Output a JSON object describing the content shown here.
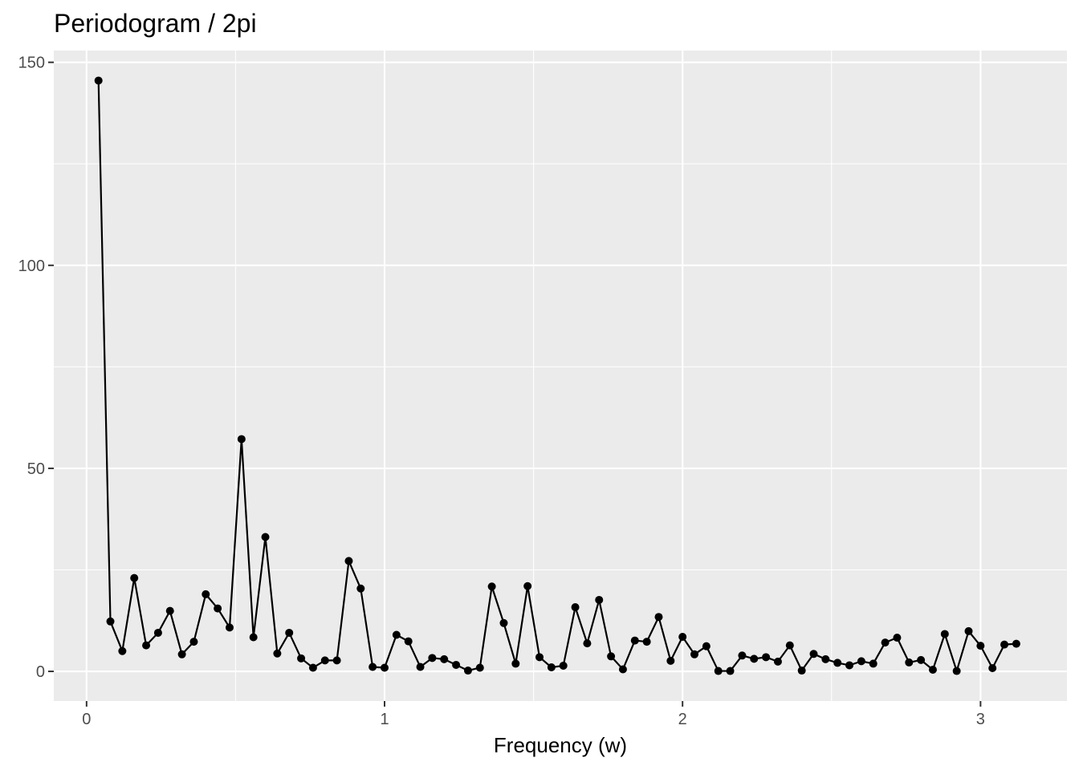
{
  "chart_data": {
    "type": "line",
    "title": "Periodogram / 2pi",
    "xlabel": "Frequency (w)",
    "ylabel": "",
    "xlim": [
      -0.11,
      3.29
    ],
    "ylim": [
      -7.3,
      152.9
    ],
    "x_ticks": [
      0,
      1,
      2,
      3
    ],
    "x_tick_labels": [
      "0",
      "1",
      "2",
      "3"
    ],
    "y_ticks": [
      0,
      50,
      100,
      150
    ],
    "y_tick_labels": [
      "0",
      "50",
      "100",
      "150"
    ],
    "grid": true,
    "legend": "none",
    "colors": {
      "panel": "#ebebeb",
      "grid": "#ffffff",
      "series": "#000000",
      "tick_text": "#4d4d4d"
    },
    "series": [
      {
        "x": [
          0.04,
          0.08,
          0.12,
          0.16,
          0.2,
          0.24,
          0.28,
          0.32,
          0.36,
          0.4,
          0.44,
          0.48,
          0.52,
          0.56,
          0.6,
          0.64,
          0.68,
          0.72,
          0.76,
          0.8,
          0.84,
          0.88,
          0.92,
          0.96,
          1.0,
          1.04,
          1.08,
          1.12,
          1.16,
          1.2,
          1.24,
          1.28,
          1.32,
          1.36,
          1.4,
          1.44,
          1.48,
          1.52,
          1.56,
          1.6,
          1.64,
          1.68,
          1.72,
          1.76,
          1.8,
          1.84,
          1.88,
          1.92,
          1.96,
          2.0,
          2.04,
          2.08,
          2.12,
          2.16,
          2.2,
          2.24,
          2.28,
          2.32,
          2.36,
          2.4,
          2.44,
          2.48,
          2.52,
          2.56,
          2.6,
          2.64,
          2.68,
          2.72,
          2.76,
          2.8,
          2.84,
          2.88,
          2.92,
          2.96,
          3.0,
          3.04,
          3.08,
          3.12
        ],
        "y": [
          145.5,
          12.3,
          5.0,
          23.0,
          6.4,
          9.5,
          14.9,
          4.2,
          7.3,
          19.0,
          15.5,
          10.8,
          57.2,
          8.4,
          33.1,
          4.4,
          9.5,
          3.2,
          0.9,
          2.7,
          2.7,
          27.2,
          20.4,
          1.1,
          0.9,
          9.0,
          7.4,
          1.1,
          3.3,
          3.0,
          1.6,
          0.2,
          0.9,
          20.9,
          11.9,
          1.9,
          21.0,
          3.5,
          1.0,
          1.4,
          15.8,
          6.9,
          17.6,
          3.7,
          0.5,
          7.6,
          7.3,
          13.4,
          2.6,
          8.5,
          4.2,
          6.2,
          0.1,
          0.1,
          3.9,
          3.1,
          3.5,
          2.4,
          6.4,
          0.2,
          4.3,
          3.0,
          2.1,
          1.5,
          2.5,
          1.9,
          7.1,
          8.3,
          2.2,
          2.8,
          0.4,
          9.2,
          0.1,
          9.9,
          6.3,
          0.8,
          6.6,
          6.8
        ]
      }
    ]
  }
}
